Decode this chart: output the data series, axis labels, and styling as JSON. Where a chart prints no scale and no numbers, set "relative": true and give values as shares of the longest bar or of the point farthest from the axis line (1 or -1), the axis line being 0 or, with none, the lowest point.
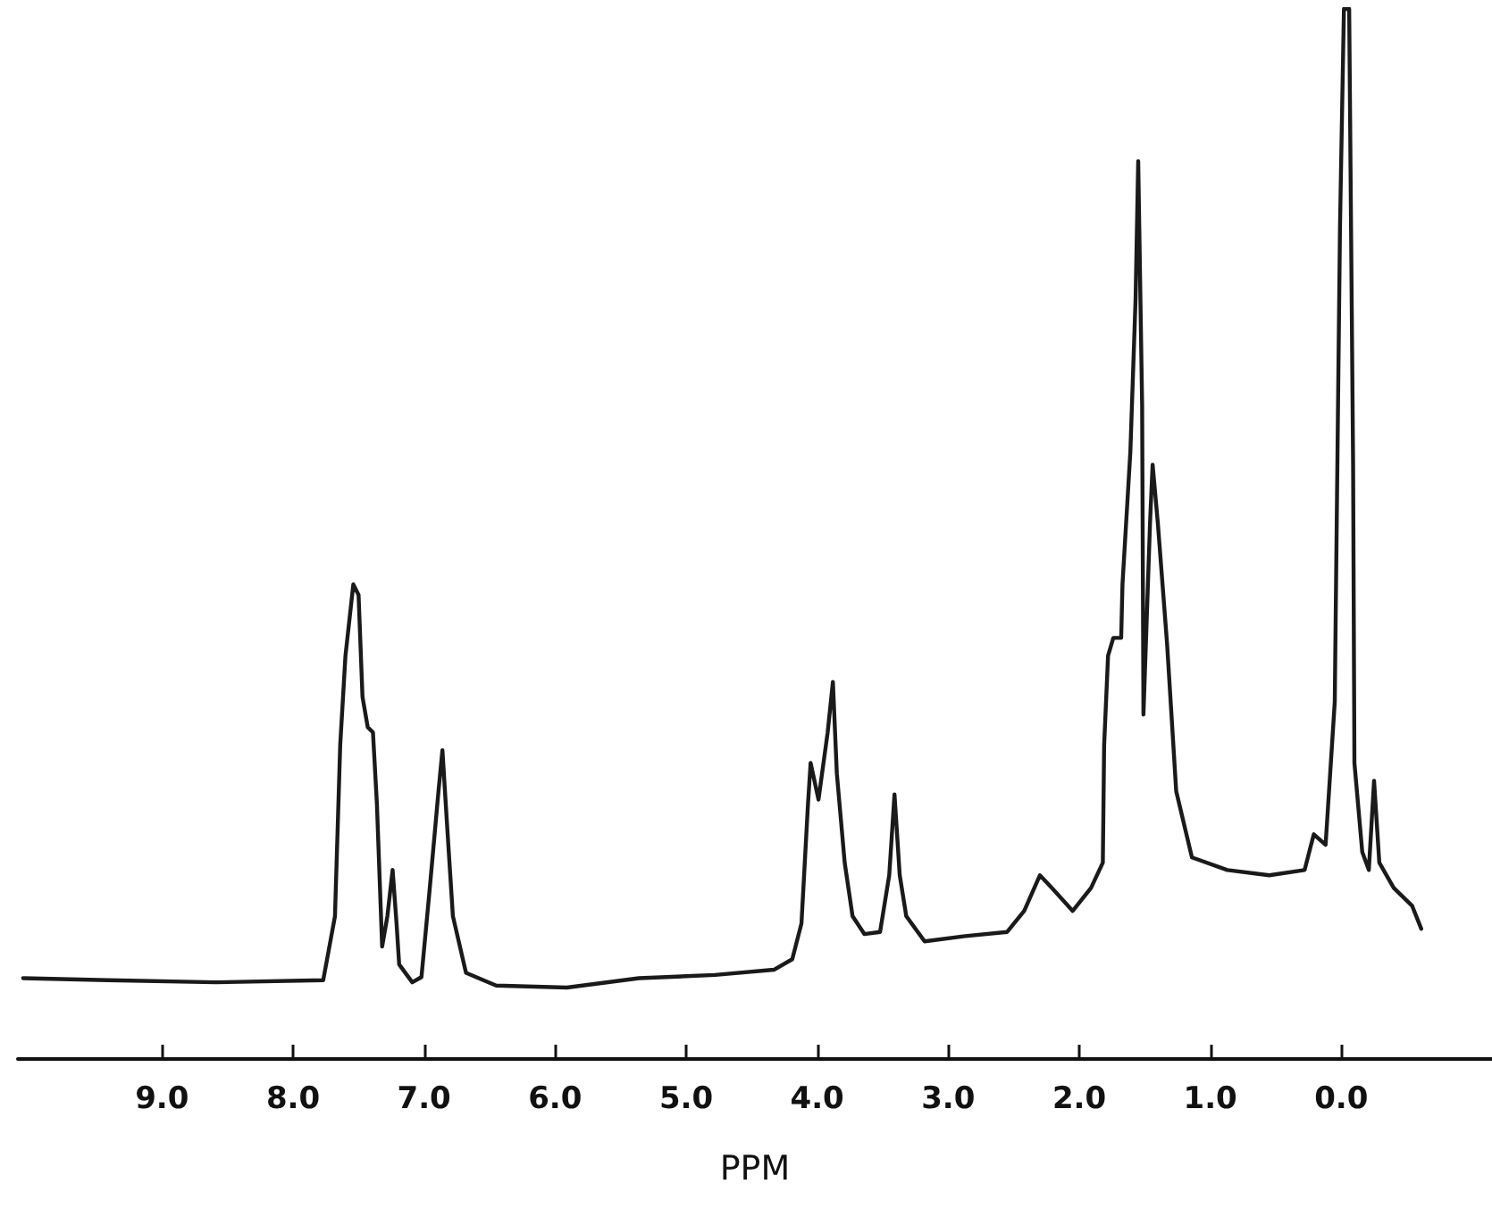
{
  "chart_data": {
    "type": "line",
    "xlabel": "PPM",
    "relative": true,
    "grid": false,
    "marker": "none",
    "line_style": "solid",
    "xlim": [
      10.1,
      -1.15
    ],
    "xticks": [
      {
        "value": 9,
        "label": "9.0"
      },
      {
        "value": 8,
        "label": "8.0"
      },
      {
        "value": 7,
        "label": "7.0"
      },
      {
        "value": 6,
        "label": "6.0"
      },
      {
        "value": 5,
        "label": "5.0"
      },
      {
        "value": 4,
        "label": "4.0"
      },
      {
        "value": 3,
        "label": "3.0"
      },
      {
        "value": 2,
        "label": "2.0"
      },
      {
        "value": 1,
        "label": "1.0"
      },
      {
        "value": 0,
        "label": "0.0"
      }
    ],
    "series": [
      {
        "color": "#1a1a1a",
        "x": [
          10.06,
          9.41,
          8.59,
          7.77,
          7.73,
          7.68,
          7.64,
          7.6,
          7.54,
          7.5,
          7.47,
          7.43,
          7.39,
          7.36,
          7.32,
          7.28,
          7.24,
          7.21,
          7.19,
          7.09,
          7.02,
          6.96,
          6.89,
          6.86,
          6.82,
          6.78,
          6.68,
          6.45,
          5.91,
          5.36,
          4.78,
          4.33,
          4.19,
          4.12,
          4.07,
          4.05,
          3.99,
          3.92,
          3.88,
          3.85,
          3.79,
          3.73,
          3.64,
          3.52,
          3.45,
          3.41,
          3.37,
          3.32,
          3.18,
          2.87,
          2.55,
          2.42,
          2.3,
          2.21,
          2.05,
          1.91,
          1.82,
          1.81,
          1.78,
          1.74,
          1.68,
          1.67,
          1.61,
          1.57,
          1.55,
          1.52,
          1.51,
          1.46,
          1.44,
          1.4,
          1.33,
          1.26,
          1.14,
          0.87,
          0.55,
          0.28,
          0.21,
          0.12,
          0.05,
          0.01,
          -0.02,
          -0.06,
          -0.09,
          -0.1,
          -0.16,
          -0.21,
          -0.25,
          -0.29,
          -0.4,
          -0.54,
          -0.61
        ],
        "values": [
          0.077,
          0.075,
          0.073,
          0.075,
          0.102,
          0.136,
          0.299,
          0.384,
          0.452,
          0.442,
          0.345,
          0.316,
          0.311,
          0.243,
          0.107,
          0.136,
          0.18,
          0.129,
          0.09,
          0.073,
          0.078,
          0.158,
          0.255,
          0.294,
          0.214,
          0.136,
          0.082,
          0.07,
          0.068,
          0.077,
          0.08,
          0.085,
          0.095,
          0.129,
          0.243,
          0.282,
          0.247,
          0.311,
          0.359,
          0.272,
          0.187,
          0.136,
          0.119,
          0.121,
          0.175,
          0.252,
          0.175,
          0.136,
          0.112,
          0.117,
          0.121,
          0.141,
          0.175,
          0.163,
          0.141,
          0.163,
          0.187,
          0.299,
          0.384,
          0.401,
          0.401,
          0.452,
          0.578,
          0.724,
          0.855,
          0.622,
          0.328,
          0.51,
          0.566,
          0.51,
          0.396,
          0.255,
          0.192,
          0.18,
          0.175,
          0.18,
          0.214,
          0.204,
          0.34,
          0.793,
          1.0,
          1.0,
          0.566,
          0.282,
          0.197,
          0.18,
          0.265,
          0.187,
          0.163,
          0.146,
          0.124
        ]
      }
    ]
  }
}
